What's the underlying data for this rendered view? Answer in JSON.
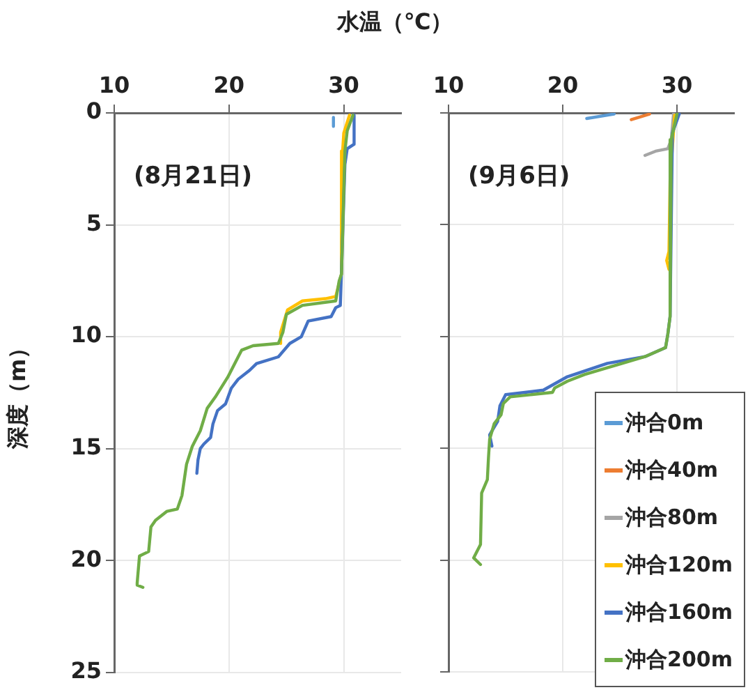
{
  "chart_data": [
    {
      "type": "line",
      "xlabel": "水温（℃）",
      "ylabel": "深度（m）",
      "annotations": [
        "(8月21日)"
      ],
      "xlim": [
        10,
        35
      ],
      "xticks": [
        10,
        20,
        30
      ],
      "ylim": [
        25,
        0
      ],
      "yticks": [
        0,
        5,
        10,
        15,
        20,
        25
      ],
      "grid": true,
      "legend": false,
      "marker": "none",
      "line_style": "solid",
      "series": [
        {
          "color": "#5b9bd5",
          "x": [
            29.1,
            29.1
          ],
          "values": [
            0.2,
            0.6
          ]
        },
        {
          "color": "#ffc000",
          "x": [
            30.5,
            30.0,
            29.9,
            29.8,
            29.3,
            28.4,
            26.4,
            25.1,
            24.8,
            24.5,
            24.5
          ],
          "values": [
            0.1,
            0.9,
            1.7,
            7.2,
            8.2,
            8.3,
            8.4,
            8.8,
            9.3,
            9.8,
            10.3
          ]
        },
        {
          "color": "#4472c4",
          "x": [
            30.9,
            30.9,
            30.3,
            30.1,
            29.8,
            29.7,
            29.3,
            28.9,
            26.9,
            26.3,
            25.3,
            24.3,
            22.4,
            21.8,
            20.8,
            20.2,
            19.7,
            19.0,
            18.6,
            18.4,
            17.8,
            17.5,
            17.3,
            17.2
          ],
          "values": [
            0.1,
            1.4,
            1.6,
            2.3,
            7.1,
            8.6,
            8.7,
            9.1,
            9.3,
            10.0,
            10.3,
            10.9,
            11.2,
            11.5,
            11.9,
            12.3,
            13.0,
            13.3,
            13.9,
            14.5,
            14.8,
            15.0,
            15.5,
            16.1
          ]
        },
        {
          "color": "#70ad47",
          "x": [
            30.8,
            30.3,
            30.1,
            29.8,
            29.6,
            29.3,
            26.4,
            25.0,
            24.7,
            24.3,
            22.1,
            21.1,
            19.9,
            18.8,
            18.1,
            17.5,
            16.8,
            16.3,
            15.9,
            15.5,
            14.6,
            13.6,
            13.2,
            13.0,
            12.2,
            12.0,
            12.0,
            12.5
          ],
          "values": [
            0.1,
            0.8,
            1.7,
            7.2,
            7.5,
            8.4,
            8.6,
            9.0,
            9.8,
            10.3,
            10.4,
            10.6,
            11.8,
            12.7,
            13.2,
            14.2,
            14.9,
            15.7,
            17.1,
            17.7,
            17.8,
            18.2,
            18.5,
            19.6,
            19.8,
            21.0,
            21.1,
            21.2
          ]
        }
      ]
    },
    {
      "type": "line",
      "annotations": [
        "(9月6日)"
      ],
      "xlim": [
        10,
        35
      ],
      "xticks": [
        10,
        20,
        30
      ],
      "ylim": [
        25,
        0
      ],
      "yticks": [
        0,
        5,
        10,
        15,
        20,
        25
      ],
      "tick_labels": "x",
      "grid": true,
      "legend": "bottom right",
      "marker": "none",
      "line_style": "solid",
      "series": [
        {
          "name": "沖合0m",
          "color": "#5b9bd5",
          "x": [
            22.1,
            24.5
          ],
          "values": [
            0.25,
            0.05
          ]
        },
        {
          "name": "沖合40m",
          "color": "#ed7d31",
          "x": [
            26.0,
            27.6
          ],
          "values": [
            0.3,
            0.05
          ]
        },
        {
          "name": "沖合80m",
          "color": "#a5a5a5",
          "x": [
            27.2,
            28.2,
            29.2,
            29.5,
            29.7
          ],
          "values": [
            1.9,
            1.7,
            1.6,
            1.2,
            0.05
          ]
        },
        {
          "name": "沖合120m",
          "color": "#ffc000",
          "x": [
            29.8,
            29.4,
            29.3,
            29.1,
            29.3
          ],
          "values": [
            0.1,
            3.0,
            6.2,
            6.6,
            7.0
          ]
        },
        {
          "name": "沖合160m",
          "color": "#4472c4",
          "x": [
            30.2,
            29.6,
            29.4,
            29.2,
            29.0,
            27.2,
            23.9,
            20.4,
            18.3,
            15.0,
            14.5,
            14.3,
            13.6,
            13.8
          ],
          "values": [
            0.05,
            0.9,
            9.1,
            9.9,
            10.5,
            10.9,
            11.2,
            11.8,
            12.4,
            12.6,
            13.1,
            13.8,
            14.4,
            14.9
          ]
        },
        {
          "name": "沖合200m",
          "color": "#70ad47",
          "x": [
            30.0,
            29.5,
            29.4,
            29.2,
            29.0,
            27.2,
            25.2,
            23.9,
            21.9,
            20.4,
            19.3,
            19.1,
            15.4,
            14.8,
            14.6,
            14.0,
            13.6,
            13.5,
            13.4,
            12.9,
            12.8,
            12.2,
            12.8
          ],
          "values": [
            0.05,
            1.2,
            9.1,
            9.9,
            10.5,
            10.9,
            11.2,
            11.4,
            11.7,
            12.0,
            12.3,
            12.5,
            12.7,
            13.0,
            13.5,
            13.9,
            14.6,
            15.4,
            16.4,
            17.0,
            19.3,
            19.9,
            20.2
          ]
        }
      ]
    }
  ]
}
